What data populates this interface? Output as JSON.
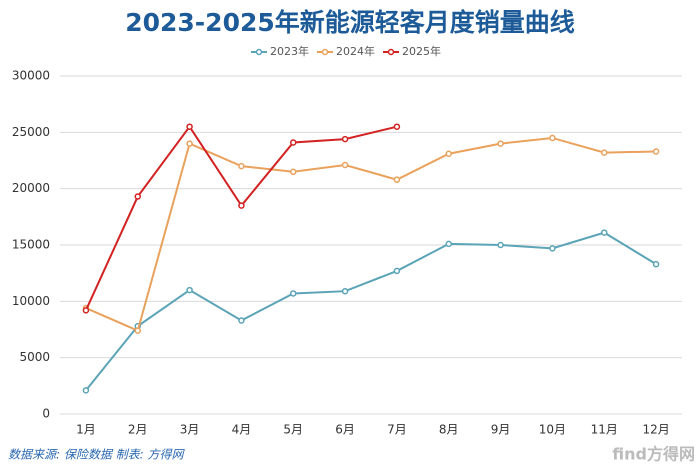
{
  "chart_data": {
    "type": "line",
    "title": "2023-2025年新能源轻客月度销量曲线",
    "categories": [
      "1月",
      "2月",
      "3月",
      "4月",
      "5月",
      "6月",
      "7月",
      "8月",
      "9月",
      "10月",
      "11月",
      "12月"
    ],
    "series": [
      {
        "name": "2023年",
        "color": "#5ba3b6",
        "values": [
          2100,
          7800,
          11000,
          8300,
          10700,
          10900,
          12700,
          15100,
          15000,
          14700,
          16100,
          13300
        ]
      },
      {
        "name": "2024年",
        "color": "#e9a15c",
        "values": [
          9400,
          7400,
          24000,
          22000,
          21500,
          22100,
          20800,
          23100,
          24000,
          24500,
          23200,
          23300
        ]
      },
      {
        "name": "2025年",
        "color": "#d22222",
        "values": [
          9200,
          19300,
          25500,
          18500,
          24100,
          24400,
          25500,
          null,
          null,
          null,
          null,
          null
        ]
      }
    ],
    "ylim": [
      0,
      30000
    ],
    "yticks": [
      0,
      5000,
      10000,
      15000,
      20000,
      25000,
      30000
    ],
    "grid": true,
    "legend": "top",
    "source": "数据来源: 保险数据 制表: 方得网",
    "watermark": "find方得网"
  }
}
